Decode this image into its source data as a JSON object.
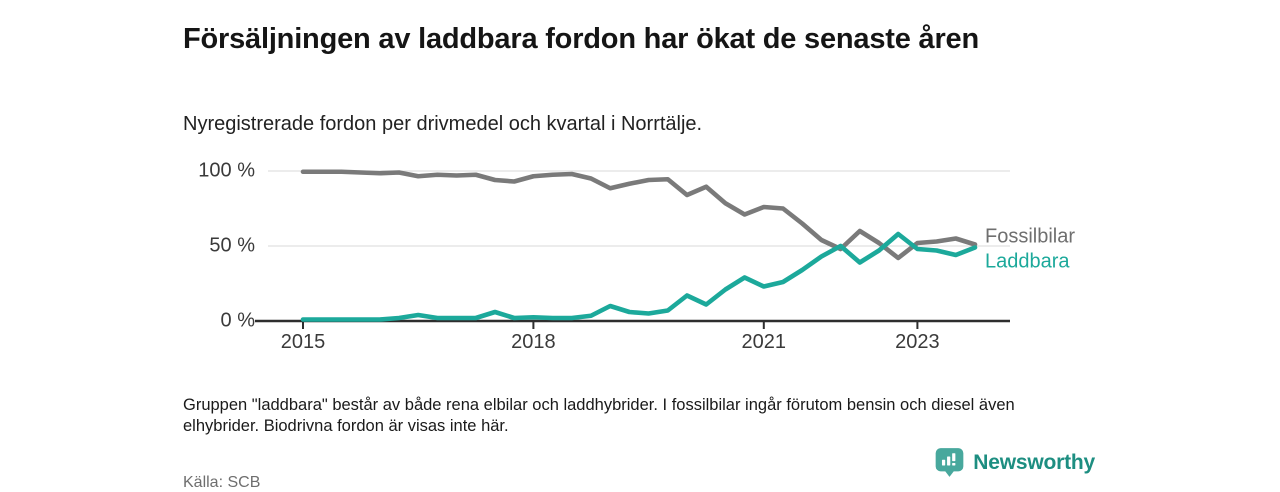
{
  "header": {
    "title": "Försäljningen av laddbara fordon har ökat de senaste åren",
    "subtitle": "Nyregistrerade fordon per drivmedel och kvartal i Norrtälje."
  },
  "chart_data": {
    "type": "line",
    "title": "Försäljningen av laddbara fordon har ökat de senaste åren",
    "subtitle": "Nyregistrerade fordon per drivmedel och kvartal i Norrtälje.",
    "x_unit": "quarter",
    "x_start": "2015 Q1",
    "x_end": "2023 Q4",
    "ylim": [
      0,
      100
    ],
    "grid": "horizontal",
    "legend_position": "right-end-of-line",
    "x_ticks": [
      {
        "label": "2015",
        "year": 2015
      },
      {
        "label": "2018",
        "year": 2018
      },
      {
        "label": "2021",
        "year": 2021
      },
      {
        "label": "2023",
        "year": 2023
      }
    ],
    "y_ticks": [
      {
        "label": "0 %",
        "value": 0
      },
      {
        "label": "50 %",
        "value": 50
      },
      {
        "label": "100 %",
        "value": 100
      }
    ],
    "year_start": 2015,
    "series": [
      {
        "name": "Fossilbilar",
        "color": "#7a7a7a",
        "label_color": "#6f6f6f",
        "values": [
          99.5,
          99.5,
          99.5,
          99,
          98.5,
          99,
          96.5,
          97.5,
          97,
          97.5,
          94,
          93,
          96.5,
          97.5,
          98,
          95,
          88.5,
          91.5,
          94,
          94.5,
          84,
          89.5,
          78.5,
          71,
          76,
          75,
          65,
          54,
          48,
          60,
          52,
          42,
          52,
          53,
          55,
          51
        ]
      },
      {
        "name": "Laddbara",
        "color": "#1ca99b",
        "label_color": "#1ca99b",
        "values": [
          1,
          1,
          1,
          1,
          1,
          2,
          4,
          2,
          2,
          2,
          6,
          2,
          2.5,
          2,
          2,
          3.5,
          10,
          6,
          5,
          7,
          17,
          11,
          21,
          29,
          23,
          26,
          34,
          43,
          50,
          39,
          47,
          58,
          48,
          47,
          44,
          49
        ]
      }
    ]
  },
  "footer": {
    "note": "Gruppen \"laddbara\" består av både rena elbilar och laddhybrider. I fossilbilar ingår förutom bensin och diesel även elhybrider. Biodrivna fordon är visas inte här.",
    "source": "Källa: SCB",
    "brand": "Newsworthy",
    "brand_color": "#1d8e81",
    "icon_color": "#48a89d"
  }
}
